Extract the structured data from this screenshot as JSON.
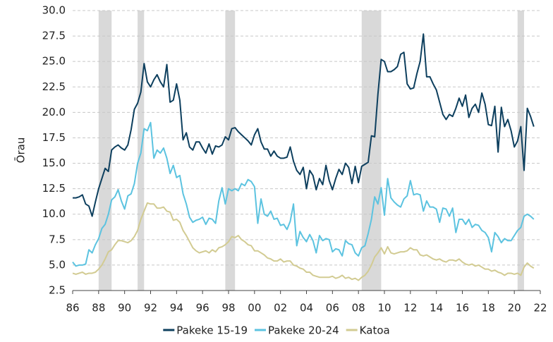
{
  "chart_data": {
    "type": "line",
    "y_label": "Ōrau",
    "xlim": [
      1986,
      2022
    ],
    "ylim": [
      2.5,
      30
    ],
    "xticks": [
      {
        "value": 1986,
        "label": "86"
      },
      {
        "value": 1988,
        "label": "88"
      },
      {
        "value": 1990,
        "label": "90"
      },
      {
        "value": 1992,
        "label": "92"
      },
      {
        "value": 1994,
        "label": "94"
      },
      {
        "value": 1996,
        "label": "96"
      },
      {
        "value": 1998,
        "label": "98"
      },
      {
        "value": 2000,
        "label": "00"
      },
      {
        "value": 2002,
        "label": "02"
      },
      {
        "value": 2004,
        "label": "04"
      },
      {
        "value": 2006,
        "label": "06"
      },
      {
        "value": 2008,
        "label": "08"
      },
      {
        "value": 2010,
        "label": "10"
      },
      {
        "value": 2012,
        "label": "12"
      },
      {
        "value": 2014,
        "label": "14"
      },
      {
        "value": 2016,
        "label": "16"
      },
      {
        "value": 2018,
        "label": "18"
      },
      {
        "value": 2020,
        "label": "20"
      },
      {
        "value": 2022,
        "label": "22"
      }
    ],
    "yticks": [
      2.5,
      {
        "value": 5,
        "label": "5.0"
      },
      7.5,
      {
        "value": 10,
        "label": "10.0"
      },
      12.5,
      {
        "value": 15,
        "label": "15.0"
      },
      17.5,
      {
        "value": 20,
        "label": "20.0"
      },
      22.5,
      {
        "value": 25,
        "label": "25.0"
      },
      27.5,
      {
        "value": 30,
        "label": "30.0"
      }
    ],
    "grid": true,
    "legend": "bottom",
    "recession_color": "#d9d9d9",
    "recessions": [
      [
        1988,
        1989
      ],
      [
        1991,
        1991.5
      ],
      [
        1997.75,
        1998.5
      ],
      [
        2008.25,
        2009.75
      ],
      [
        2020.25,
        2020.75
      ]
    ],
    "x": [
      1986,
      1986.25,
      1986.5,
      1986.75,
      1987,
      1987.25,
      1987.5,
      1987.75,
      1988,
      1988.25,
      1988.5,
      1988.75,
      1989,
      1989.25,
      1989.5,
      1989.75,
      1990,
      1990.25,
      1990.5,
      1990.75,
      1991,
      1991.25,
      1991.5,
      1991.75,
      1992,
      1992.25,
      1992.5,
      1992.75,
      1993,
      1993.25,
      1993.5,
      1993.75,
      1994,
      1994.25,
      1994.5,
      1994.75,
      1995,
      1995.25,
      1995.5,
      1995.75,
      1996,
      1996.25,
      1996.5,
      1996.75,
      1997,
      1997.25,
      1997.5,
      1997.75,
      1998,
      1998.25,
      1998.5,
      1998.75,
      1999,
      1999.25,
      1999.5,
      1999.75,
      2000,
      2000.25,
      2000.5,
      2000.75,
      2001,
      2001.25,
      2001.5,
      2001.75,
      2002,
      2002.25,
      2002.5,
      2002.75,
      2003,
      2003.25,
      2003.5,
      2003.75,
      2004,
      2004.25,
      2004.5,
      2004.75,
      2005,
      2005.25,
      2005.5,
      2005.75,
      2006,
      2006.25,
      2006.5,
      2006.75,
      2007,
      2007.25,
      2007.5,
      2007.75,
      2008,
      2008.25,
      2008.5,
      2008.75,
      2009,
      2009.25,
      2009.5,
      2009.75,
      2010,
      2010.25,
      2010.5,
      2010.75,
      2011,
      2011.25,
      2011.5,
      2011.75,
      2012,
      2012.25,
      2012.5,
      2012.75,
      2013,
      2013.25,
      2013.5,
      2013.75,
      2014,
      2014.25,
      2014.5,
      2014.75,
      2015,
      2015.25,
      2015.5,
      2015.75,
      2016,
      2016.25,
      2016.5,
      2016.75,
      2017,
      2017.25,
      2017.5,
      2017.75,
      2018,
      2018.25,
      2018.5,
      2018.75,
      2019,
      2019.25,
      2019.5,
      2019.75,
      2020,
      2020.25,
      2020.5,
      2020.75,
      2021,
      2021.25,
      2021.5
    ],
    "series": [
      {
        "name": "Pakeke 15-19",
        "color": "#0d3f5e",
        "values": [
          11.6,
          11.6,
          11.7,
          11.9,
          11.0,
          10.8,
          9.8,
          11.2,
          12.5,
          13.5,
          14.5,
          14.2,
          16.3,
          16.6,
          16.8,
          16.5,
          16.3,
          16.8,
          18.3,
          20.3,
          20.9,
          22.0,
          24.8,
          23.0,
          22.5,
          23.2,
          23.7,
          23.0,
          22.5,
          24.7,
          21.0,
          21.2,
          22.8,
          21.2,
          17.3,
          18.0,
          16.6,
          16.3,
          17.1,
          17.1,
          16.5,
          16.0,
          16.9,
          15.9,
          16.7,
          16.6,
          16.8,
          17.6,
          17.3,
          18.4,
          18.5,
          18.1,
          17.8,
          17.5,
          17.2,
          16.8,
          17.8,
          18.4,
          17.1,
          16.4,
          16.4,
          15.7,
          16.2,
          15.7,
          15.5,
          15.5,
          15.6,
          16.6,
          15.2,
          14.3,
          13.9,
          14.6,
          12.5,
          14.3,
          13.8,
          12.4,
          13.5,
          12.9,
          14.8,
          13.3,
          12.4,
          13.5,
          14.4,
          13.9,
          15.0,
          14.6,
          13.0,
          14.7,
          13.1,
          14.7,
          14.9,
          15.1,
          17.7,
          17.6,
          21.8,
          25.2,
          25.0,
          24.0,
          24.0,
          24.2,
          24.5,
          25.7,
          25.9,
          22.8,
          22.3,
          22.4,
          23.8,
          25.0,
          27.7,
          23.5,
          23.5,
          22.8,
          22.2,
          21.0,
          19.8,
          19.3,
          19.8,
          19.6,
          20.4,
          21.4,
          20.6,
          21.7,
          19.5,
          20.4,
          20.8,
          20.0,
          21.9,
          20.8,
          18.8,
          18.7,
          20.6,
          16.1,
          20.5,
          18.6,
          19.3,
          18.2,
          16.6,
          17.2,
          18.6,
          14.3,
          20.4,
          19.6,
          18.6
        ]
      },
      {
        "name": "Pakeke 20-24",
        "color": "#5cc3e0",
        "values": [
          5.3,
          4.9,
          5.0,
          5.0,
          5.1,
          6.5,
          6.2,
          7.0,
          7.6,
          8.6,
          9.0,
          10.0,
          11.4,
          11.7,
          12.4,
          11.3,
          10.5,
          11.8,
          12.0,
          13.0,
          15.0,
          16.0,
          18.4,
          18.2,
          19.0,
          15.5,
          16.3,
          16.0,
          16.5,
          15.5,
          14.0,
          14.8,
          13.6,
          13.8,
          12.0,
          11.0,
          9.7,
          9.2,
          9.4,
          9.5,
          9.7,
          9.0,
          9.6,
          9.5,
          9.1,
          11.3,
          12.6,
          11.0,
          12.5,
          12.3,
          12.5,
          12.3,
          13.0,
          12.8,
          13.4,
          13.2,
          12.7,
          9.1,
          11.5,
          10.0,
          9.8,
          10.3,
          9.5,
          9.6,
          8.9,
          9.0,
          8.5,
          9.3,
          11.0,
          6.9,
          8.3,
          7.7,
          7.3,
          8.0,
          7.4,
          6.2,
          7.9,
          7.4,
          7.6,
          7.5,
          6.3,
          6.6,
          6.5,
          5.9,
          7.4,
          7.1,
          7.0,
          6.2,
          5.9,
          6.7,
          6.9,
          8.1,
          9.5,
          11.7,
          11.0,
          12.6,
          9.9,
          13.5,
          11.6,
          11.2,
          10.9,
          10.7,
          11.5,
          11.8,
          13.3,
          11.9,
          12.0,
          11.9,
          10.3,
          11.3,
          10.7,
          10.7,
          10.5,
          9.2,
          10.6,
          10.5,
          9.8,
          10.6,
          8.2,
          9.5,
          9.5,
          9.0,
          9.5,
          8.7,
          9.0,
          8.9,
          8.4,
          8.2,
          7.7,
          6.3,
          8.2,
          7.8,
          7.2,
          7.6,
          7.4,
          7.4,
          7.9,
          8.4,
          8.7,
          9.8,
          10.0,
          9.8,
          9.5
        ]
      },
      {
        "name": "Katoa",
        "color": "#d2cb92",
        "values": [
          4.2,
          4.1,
          4.2,
          4.3,
          4.1,
          4.2,
          4.2,
          4.3,
          4.6,
          5.0,
          5.6,
          6.3,
          6.5,
          7.0,
          7.4,
          7.4,
          7.3,
          7.2,
          7.4,
          7.8,
          8.4,
          9.5,
          10.3,
          11.1,
          11.0,
          11.0,
          10.6,
          10.6,
          10.7,
          10.3,
          10.2,
          9.4,
          9.5,
          9.2,
          8.4,
          7.9,
          7.3,
          6.7,
          6.4,
          6.2,
          6.3,
          6.4,
          6.2,
          6.5,
          6.3,
          6.7,
          6.8,
          7.0,
          7.3,
          7.8,
          7.7,
          7.9,
          7.5,
          7.3,
          7.0,
          6.9,
          6.4,
          6.4,
          6.2,
          6.0,
          5.7,
          5.6,
          5.4,
          5.4,
          5.6,
          5.3,
          5.4,
          5.4,
          5.0,
          4.9,
          4.7,
          4.6,
          4.3,
          4.3,
          4.0,
          3.9,
          3.8,
          3.8,
          3.8,
          3.8,
          3.9,
          3.7,
          3.8,
          4.0,
          3.7,
          3.8,
          3.6,
          3.7,
          3.5,
          3.8,
          4.0,
          4.4,
          5.0,
          5.8,
          6.2,
          6.7,
          6.1,
          6.8,
          6.2,
          6.1,
          6.2,
          6.3,
          6.3,
          6.4,
          6.7,
          6.5,
          6.5,
          6.0,
          5.9,
          6.0,
          5.8,
          5.6,
          5.5,
          5.6,
          5.4,
          5.3,
          5.5,
          5.5,
          5.4,
          5.6,
          5.3,
          5.1,
          5.0,
          5.1,
          4.9,
          5.0,
          4.8,
          4.6,
          4.6,
          4.4,
          4.5,
          4.3,
          4.2,
          4.0,
          4.2,
          4.2,
          4.1,
          4.2,
          4.0,
          4.8,
          5.2,
          4.9,
          4.7
        ]
      }
    ]
  }
}
